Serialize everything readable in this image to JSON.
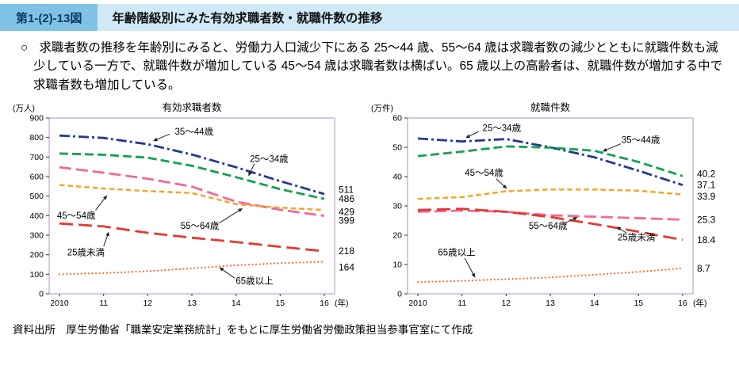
{
  "header": {
    "figure_number": "第1-(2)-13図",
    "title": "年齢階級別にみた有効求職者数・就職件数の推移"
  },
  "body_text": {
    "bullet": "○",
    "text": "求職者数の推移を年齢別にみると、労働力人口減少下にある 25〜44 歳、55〜64 歳は求職者数の減少とともに就職件数も減少している一方で、就職件数が増加している 45〜54 歳は求職者数は横ばい。65 歳以上の高齢者は、就職件数が増加する中で求職者数も増加している。",
    "note": ""
  },
  "source": "資料出所　厚生労働省「職業安定業務統計」をもとに厚生労働省労働政策担当参事官室にて作成",
  "colors": {
    "header_bar": "#cfe9f7",
    "figure_number_box": "#7fc2e6",
    "plot_border": "#bda3cc",
    "arrow": "#222222"
  },
  "chart_data": [
    {
      "type": "line",
      "title": "有効求職者数",
      "unit_label": "(万人)",
      "x_labels": [
        "2010",
        "11",
        "12",
        "13",
        "14",
        "15",
        "16"
      ],
      "x_suffix": "(年)",
      "ylim": [
        0,
        900
      ],
      "ytick_step": 100,
      "grid": false,
      "legend": "in-chart annotations",
      "series": [
        {
          "name": "35〜44歳",
          "color": "#21398f",
          "dash": "13 4 3 4",
          "width": 2.8,
          "values": [
            810,
            798,
            766,
            713,
            648,
            577,
            511
          ],
          "end_label": "511",
          "end_offset": 22
        },
        {
          "name": "25〜34歳",
          "color": "#14a151",
          "dash": "11 5",
          "width": 2.8,
          "values": [
            718,
            712,
            697,
            655,
            597,
            536,
            486
          ],
          "end_label": "486",
          "end_offset": 0
        },
        {
          "name": "55〜64歳",
          "color": "#f2679b",
          "dash": "15 6",
          "width": 2.8,
          "values": [
            648,
            620,
            589,
            549,
            472,
            430,
            399
          ],
          "end_label": "399",
          "end_offset": -24
        },
        {
          "name": "45〜54歳",
          "color": "#f6a21c",
          "dash": "6.5 4",
          "width": 2.4,
          "values": [
            557,
            539,
            526,
            516,
            459,
            441,
            429
          ],
          "end_label": "429",
          "end_offset": -10
        },
        {
          "name": "25歳未満",
          "color": "#e23a30",
          "dash": "17 7",
          "width": 2.8,
          "values": [
            360,
            345,
            312,
            287,
            265,
            241,
            218
          ],
          "end_label": "218",
          "end_offset": 0
        },
        {
          "name": "65歳以上",
          "color": "#ff6d2a",
          "dash": "0.1 4.5",
          "cap": "round",
          "width": 2.2,
          "values": [
            100,
            106,
            116,
            130,
            146,
            157,
            164
          ],
          "end_label": "164",
          "end_offset": -28
        }
      ],
      "annotations": [
        {
          "text": "35〜44歳",
          "lx": 3.05,
          "ly": 832,
          "sx": 2.5,
          "sy": 818,
          "ex": 2.12,
          "ey": 782
        },
        {
          "text": "25〜34歳",
          "lx": 4.75,
          "ly": 692,
          "sx": 4.42,
          "sy": 666,
          "ex": 4.28,
          "ey": 602
        },
        {
          "text": "45〜54歳",
          "lx": 0.38,
          "ly": 402,
          "sx": 0.82,
          "sy": 428,
          "ex": 1.08,
          "ey": 505
        },
        {
          "text": "55〜64歳",
          "lx": 3.18,
          "ly": 348,
          "sx": 3.62,
          "sy": 362,
          "ex": 4.15,
          "ey": 438
        },
        {
          "text": "25歳未満",
          "lx": 0.6,
          "ly": 212,
          "sx": 1.0,
          "sy": 243,
          "ex": 1.12,
          "ey": 318
        },
        {
          "text": "65歳以上",
          "lx": 4.42,
          "ly": 66,
          "sx": 3.97,
          "sy": 80,
          "ex": 3.62,
          "ey": 136
        }
      ]
    },
    {
      "type": "line",
      "title": "就職件数",
      "unit_label": "(万件)",
      "x_labels": [
        "2010",
        "11",
        "12",
        "13",
        "14",
        "15",
        "16"
      ],
      "x_suffix": "(年)",
      "ylim": [
        0,
        60
      ],
      "ytick_step": 10,
      "grid": false,
      "legend": "in-chart annotations",
      "series": [
        {
          "name": "25〜34歳",
          "color": "#21398f",
          "dash": "13 4 3 4",
          "width": 2.8,
          "values": [
            53.0,
            52.0,
            52.8,
            50.0,
            46.6,
            42.0,
            37.1
          ],
          "end_label": "37.1",
          "end_offset": 0
        },
        {
          "name": "35〜44歳",
          "color": "#14a151",
          "dash": "11 5",
          "width": 2.8,
          "values": [
            47.0,
            48.5,
            50.3,
            49.9,
            48.8,
            45.0,
            40.2
          ],
          "end_label": "40.2",
          "end_offset": 0.8
        },
        {
          "name": "45〜54歳",
          "color": "#f6a21c",
          "dash": "6.5 4",
          "width": 2.4,
          "values": [
            32.4,
            33.0,
            35.0,
            35.6,
            35.6,
            35.2,
            33.9
          ],
          "end_label": "33.9",
          "end_offset": -0.6
        },
        {
          "name": "55〜64歳",
          "color": "#f2679b",
          "dash": "15 6",
          "width": 2.8,
          "values": [
            28.0,
            28.4,
            28.0,
            26.8,
            26.3,
            25.8,
            25.3
          ],
          "end_label": "25.3",
          "end_offset": 0
        },
        {
          "name": "25歳未満",
          "color": "#e23a30",
          "dash": "17 7",
          "width": 2.8,
          "values": [
            28.6,
            29.0,
            28.0,
            26.2,
            23.8,
            21.2,
            18.4
          ],
          "end_label": "18.4",
          "end_offset": 0
        },
        {
          "name": "65歳以上",
          "color": "#ff6d2a",
          "dash": "0.1 4.5",
          "cap": "round",
          "width": 2.2,
          "values": [
            4.0,
            4.4,
            5.0,
            5.6,
            6.5,
            7.5,
            8.7
          ],
          "end_label": "8.7",
          "end_offset": 0
        }
      ],
      "annotations": [
        {
          "text": "25〜34歳",
          "lx": 1.9,
          "ly": 56.6,
          "sx": 1.38,
          "sy": 55.4,
          "ex": 1.08,
          "ey": 53.2
        },
        {
          "text": "35〜44歳",
          "lx": 5.05,
          "ly": 52.6,
          "sx": 4.6,
          "sy": 51.2,
          "ex": 4.18,
          "ey": 48.6
        },
        {
          "text": "45〜54歳",
          "lx": 1.5,
          "ly": 41.3,
          "sx": 1.78,
          "sy": 39.2,
          "ex": 2.02,
          "ey": 35.8
        },
        {
          "text": "55〜64歳",
          "lx": 2.95,
          "ly": 23.2,
          "sx": 3.35,
          "sy": 24.3,
          "ex": 3.62,
          "ey": 26.2
        },
        {
          "text": "25歳未満",
          "lx": 4.95,
          "ly": 19.3,
          "sx": 4.72,
          "sy": 20.8,
          "ex": 4.5,
          "ey": 22.9
        },
        {
          "text": "65歳以上",
          "lx": 0.88,
          "ly": 14.2,
          "sx": 1.06,
          "sy": 12.2,
          "ex": 1.3,
          "ey": 5.5
        }
      ]
    }
  ]
}
